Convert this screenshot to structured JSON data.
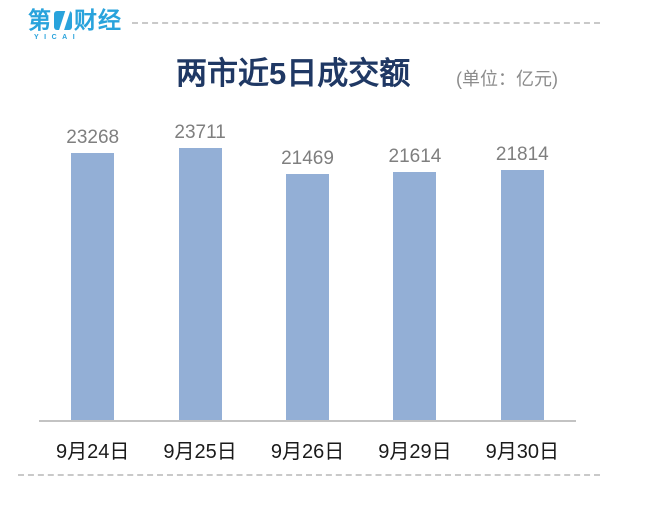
{
  "logo": {
    "brand_prefix": "第",
    "brand_suffix": "财经",
    "brand_sub": "YICAI",
    "color": "#29A3DC"
  },
  "header": {
    "title": "两市近5日成交额",
    "unit": "(单位：亿元)"
  },
  "chart_data": {
    "type": "bar",
    "title": "两市近5日成交额",
    "unit_label": "(单位：亿元)",
    "categories": [
      "9月24日",
      "9月25日",
      "9月26日",
      "9月29日",
      "9月30日"
    ],
    "values": [
      23268,
      23711,
      21469,
      21614,
      21814
    ],
    "ylim": [
      0,
      23711
    ],
    "bar_color": "#93AFD6",
    "value_label_color": "#7F7F7F",
    "category_label_color": "#1A1A1A",
    "title_color": "#1F3864",
    "axis_line_color": "#C3C3C3",
    "grid": false,
    "legend": false,
    "value_labels_shown": true
  }
}
